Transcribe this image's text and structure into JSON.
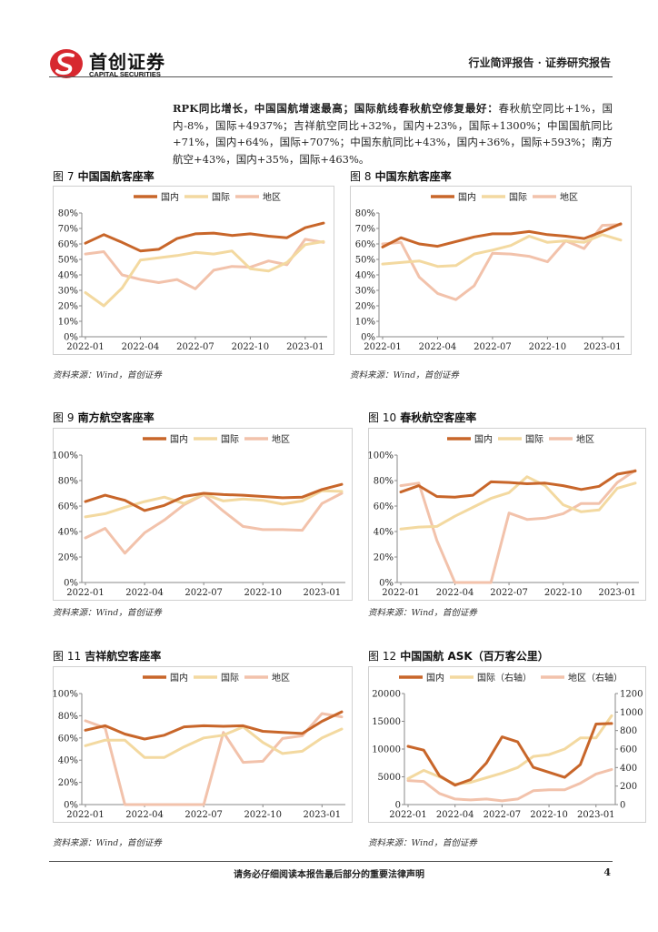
{
  "header": {
    "company_cn": "首创证券",
    "company_en": "CAPITAL SECURITIES",
    "report_type": "行业简评报告 · 证券研究报告"
  },
  "intro": {
    "bold_lead": "RPK同比增长，中国国航增速最高；国际航线春秋航空修复最好：",
    "text": "春秋航空同比+1%，国内-8%，国际+4937%；吉祥航空同比+32%，国内+23%，国际+1300%；中国国航同比+71%，国内+64%，国际+707%；中国东航同比+43%，国内+36%，国际+593%；南方航空+43%，国内+35%，国际+463%。"
  },
  "colors": {
    "domestic": "#c8662a",
    "international": "#f3d9a0",
    "regional": "#f2c2ab",
    "axis": "#888888"
  },
  "source_text": "资料来源：Wind，首创证券",
  "footer": {
    "disclaimer": "请务必仔细阅读本报告最后部分的重要法律声明",
    "page": "4"
  },
  "chart_data": [
    {
      "id": "fig7",
      "type": "line",
      "fig_label": "图 7",
      "title": "中国国航客座率",
      "legend": [
        "国内",
        "国际",
        "地区"
      ],
      "x_ticks": [
        "2022-01",
        "2022-04",
        "2022-07",
        "2022-10",
        "2023-01"
      ],
      "y_ticks": [
        "0%",
        "10%",
        "20%",
        "30%",
        "40%",
        "50%",
        "60%",
        "70%",
        "80%"
      ],
      "ylim": [
        0,
        80
      ],
      "series": [
        {
          "name": "国内",
          "values": [
            60.5,
            66,
            61,
            55.5,
            56.5,
            63.5,
            66.5,
            67,
            65.5,
            66.5,
            65,
            64,
            70.5,
            73.5
          ]
        },
        {
          "name": "国际",
          "values": [
            28.5,
            20,
            31.5,
            49.5,
            51,
            52.5,
            54.5,
            53.5,
            55.5,
            44,
            42.5,
            48,
            59.5,
            61.5
          ]
        },
        {
          "name": "地区",
          "values": [
            53.5,
            55,
            40,
            37,
            35,
            37,
            31,
            43,
            45.5,
            45,
            49,
            46.5,
            63,
            61
          ]
        }
      ]
    },
    {
      "id": "fig8",
      "type": "line",
      "fig_label": "图 8",
      "title": "中国东航客座率",
      "legend": [
        "国内",
        "国际",
        "地区"
      ],
      "x_ticks": [
        "2022-01",
        "2022-04",
        "2022-07",
        "2022-10",
        "2023-01"
      ],
      "y_ticks": [
        "0%",
        "10%",
        "20%",
        "30%",
        "40%",
        "50%",
        "60%",
        "70%",
        "80%"
      ],
      "ylim": [
        0,
        80
      ],
      "series": [
        {
          "name": "国内",
          "values": [
            58,
            64,
            60,
            58.5,
            61.5,
            64.5,
            66.5,
            66.5,
            68,
            66,
            65,
            63.5,
            68,
            73
          ]
        },
        {
          "name": "国际",
          "values": [
            47,
            48,
            49,
            45.5,
            46,
            53.5,
            56,
            59,
            65,
            61,
            62,
            61,
            66,
            62.5
          ]
        },
        {
          "name": "地区",
          "values": [
            60,
            61,
            38.5,
            28,
            24,
            33,
            54,
            53.5,
            52,
            48.5,
            62,
            57,
            72,
            72.5
          ]
        }
      ]
    },
    {
      "id": "fig9",
      "type": "line",
      "fig_label": "图 9",
      "title": "南方航空客座率",
      "legend": [
        "国内",
        "国际",
        "地区"
      ],
      "x_ticks": [
        "2022-01",
        "2022-04",
        "2022-07",
        "2022-10",
        "2023-01"
      ],
      "y_ticks": [
        "0%",
        "20%",
        "40%",
        "60%",
        "80%",
        "100%"
      ],
      "ylim": [
        0,
        100
      ],
      "series": [
        {
          "name": "国内",
          "values": [
            63.5,
            68.5,
            64.5,
            56.5,
            60.5,
            67.5,
            70,
            69,
            68.5,
            67.5,
            66.5,
            67,
            73,
            77
          ]
        },
        {
          "name": "国际",
          "values": [
            51.5,
            54,
            59,
            63.5,
            67,
            62,
            69.5,
            64,
            65.5,
            64.5,
            61.5,
            64,
            72,
            71.5
          ]
        },
        {
          "name": "地区",
          "values": [
            35,
            42.5,
            23,
            39,
            49,
            61,
            69,
            56,
            44,
            41.5,
            41.5,
            41,
            62,
            70
          ]
        }
      ]
    },
    {
      "id": "fig10",
      "type": "line",
      "fig_label": "图 10",
      "title": "春秋航空客座率",
      "legend": [
        "国内",
        "国际",
        "地区"
      ],
      "x_ticks": [
        "2022-01",
        "2022-04",
        "2022-07",
        "2022-10",
        "2023-01"
      ],
      "y_ticks": [
        "0%",
        "20%",
        "40%",
        "60%",
        "80%",
        "100%"
      ],
      "ylim": [
        0,
        100
      ],
      "series": [
        {
          "name": "国内",
          "values": [
            71,
            76,
            67.5,
            67,
            68.5,
            79,
            78.5,
            77.5,
            78,
            76,
            73,
            75.5,
            85,
            87.5
          ]
        },
        {
          "name": "国际",
          "values": [
            42,
            43.5,
            44,
            52,
            59,
            66,
            70.5,
            83,
            76,
            61,
            55.5,
            57,
            74,
            78
          ]
        },
        {
          "name": "地区",
          "values": [
            76,
            78,
            33,
            0,
            0,
            0,
            54.5,
            49.5,
            50.5,
            54,
            62,
            62,
            78.5,
            88
          ]
        }
      ]
    },
    {
      "id": "fig11",
      "type": "line",
      "fig_label": "图 11",
      "title": "吉祥航空客座率",
      "legend": [
        "国内",
        "国际",
        "地区"
      ],
      "x_ticks": [
        "2022-01",
        "2022-04",
        "2022-07",
        "2022-10",
        "2023-01"
      ],
      "y_ticks": [
        "0%",
        "20%",
        "40%",
        "60%",
        "80%",
        "100%"
      ],
      "ylim": [
        0,
        100
      ],
      "series": [
        {
          "name": "国内",
          "values": [
            67,
            71,
            63.5,
            59,
            62.5,
            70,
            71,
            70.5,
            71,
            66,
            65,
            64,
            75,
            83.5
          ]
        },
        {
          "name": "国际",
          "values": [
            53,
            58,
            58,
            42.5,
            42.5,
            52,
            60,
            62.5,
            70,
            56,
            46,
            48,
            60,
            68
          ]
        },
        {
          "name": "地区",
          "values": [
            75.5,
            69,
            0,
            0,
            0,
            0,
            0,
            65,
            38,
            39,
            59.5,
            62,
            82,
            79
          ]
        }
      ]
    },
    {
      "id": "fig12",
      "type": "line",
      "fig_label": "图 12",
      "title": "中国国航 ASK（百万客公里）",
      "legend": [
        "国内",
        "国际（右轴）",
        "地区（右轴）"
      ],
      "x_ticks": [
        "2022-01",
        "2022-04",
        "2022-07",
        "2022-10",
        "2023-01"
      ],
      "y_ticks": [
        "0",
        "5000",
        "10000",
        "15000",
        "20000"
      ],
      "y2_ticks": [
        "0",
        "200",
        "400",
        "600",
        "800",
        "1000",
        "1200"
      ],
      "ylim": [
        0,
        20000
      ],
      "y2lim": [
        0,
        1200
      ],
      "series": [
        {
          "name": "国内",
          "axis": "left",
          "values": [
            10500,
            9800,
            5200,
            3500,
            4500,
            7500,
            12200,
            11300,
            6700,
            5800,
            4900,
            7200,
            14500,
            14600
          ]
        },
        {
          "name": "国际（右轴）",
          "axis": "right",
          "values": [
            280,
            370,
            300,
            220,
            240,
            290,
            340,
            400,
            520,
            540,
            600,
            720,
            720,
            960
          ]
        },
        {
          "name": "地区（右轴）",
          "axis": "right",
          "values": [
            260,
            250,
            120,
            60,
            50,
            60,
            40,
            60,
            150,
            160,
            160,
            230,
            330,
            380
          ]
        }
      ]
    }
  ]
}
